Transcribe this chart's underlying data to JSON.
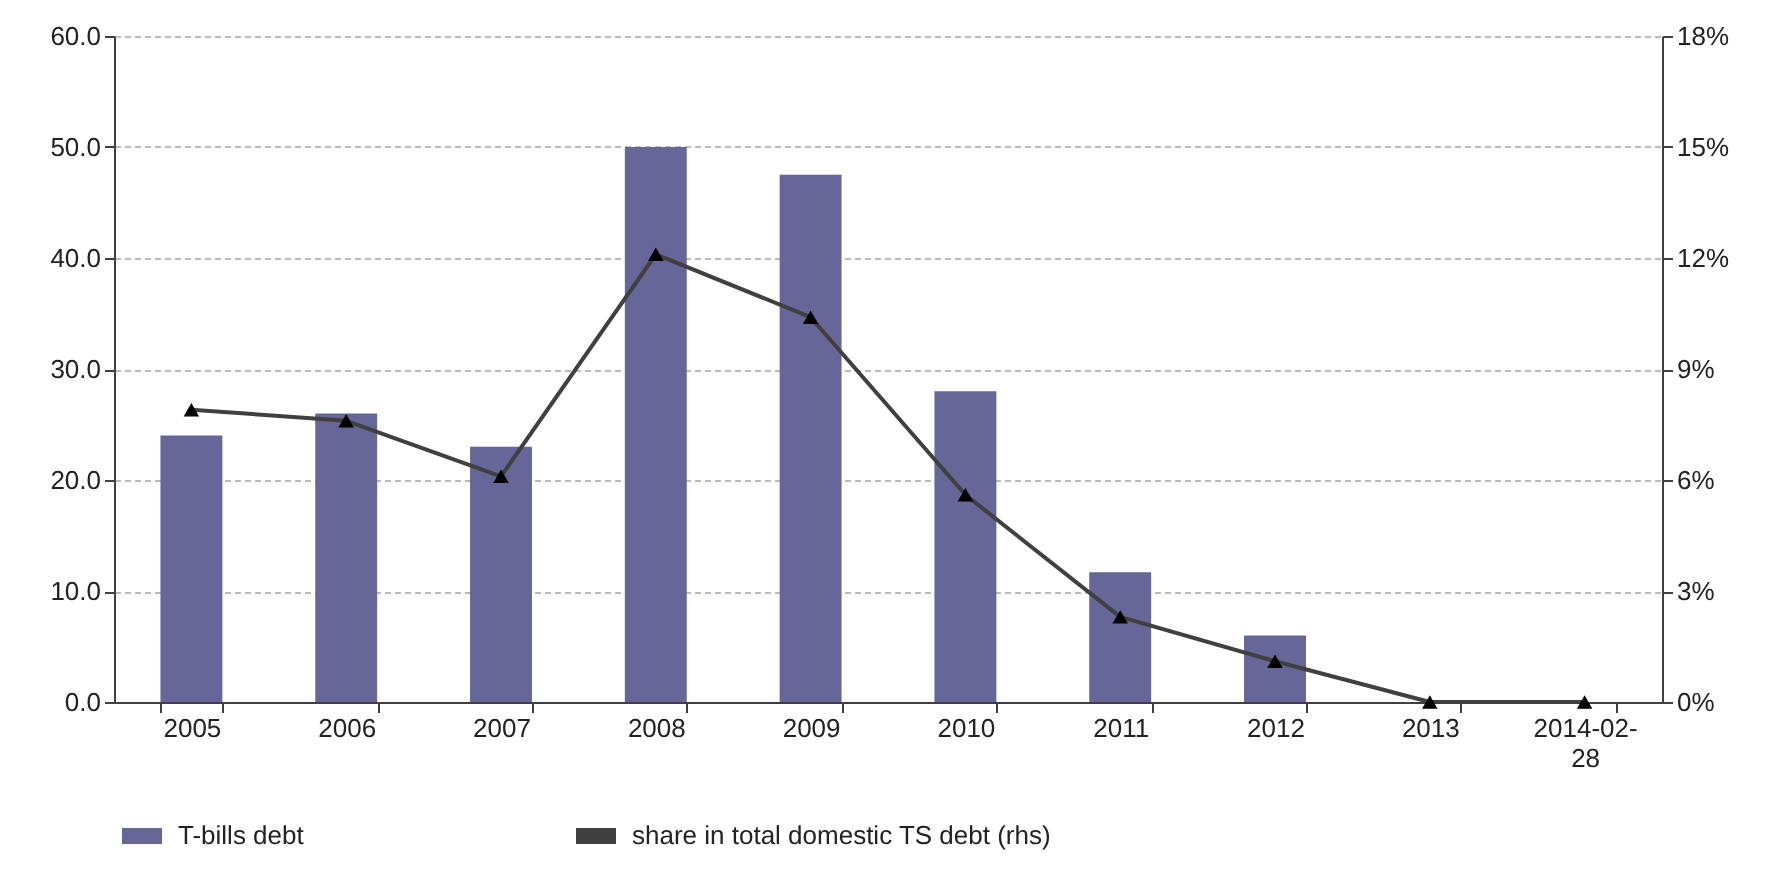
{
  "chart_data": {
    "type": "bar",
    "categories": [
      "2005",
      "2006",
      "2007",
      "2008",
      "2009",
      "2010",
      "2011",
      "2012",
      "2013",
      "2014-02-28"
    ],
    "series": [
      {
        "name": "T-bills debt",
        "color": "#666699",
        "values": [
          24.0,
          26.0,
          23.0,
          50.0,
          47.5,
          28.0,
          11.7,
          6.0,
          0,
          0
        ]
      },
      {
        "name": "share in total domestic TS debt (rhs)",
        "type": "line",
        "axis": "y2",
        "color": "#404040",
        "marker": "triangle",
        "line_style": "solid",
        "values": [
          7.9,
          7.6,
          6.1,
          12.1,
          10.4,
          5.6,
          2.3,
          1.1,
          0,
          0
        ]
      }
    ],
    "ylim": [
      0,
      60
    ],
    "yticks": [
      {
        "value": 0,
        "label": "0.0"
      },
      {
        "value": 10,
        "label": "10.0"
      },
      {
        "value": 20,
        "label": "20.0"
      },
      {
        "value": 30,
        "label": "30.0"
      },
      {
        "value": 40,
        "label": "40.0"
      },
      {
        "value": 50,
        "label": "50.0"
      },
      {
        "value": 60,
        "label": "60.0"
      }
    ],
    "y2lim": [
      0,
      18
    ],
    "y2ticks": [
      {
        "value": 0,
        "label": "0%"
      },
      {
        "value": 3,
        "label": "3%"
      },
      {
        "value": 6,
        "label": "6%"
      },
      {
        "value": 9,
        "label": "9%"
      },
      {
        "value": 12,
        "label": "12%"
      },
      {
        "value": 15,
        "label": "15%"
      },
      {
        "value": 18,
        "label": "18%"
      }
    ],
    "grid": "y",
    "legend": "bottom"
  }
}
